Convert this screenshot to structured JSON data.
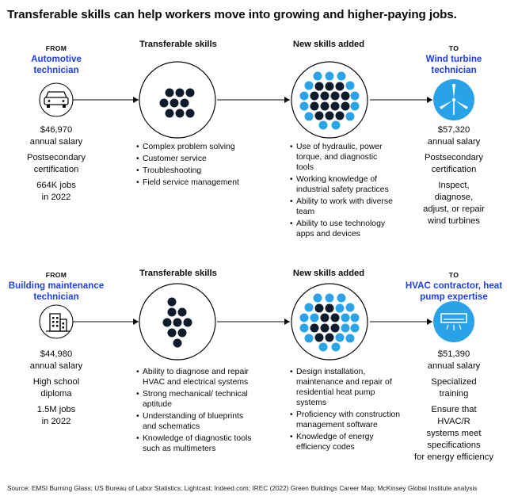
{
  "title": "Transferable skills can help workers move into growing and higher-paying jobs.",
  "colors": {
    "accent_blue": "#1f40e6",
    "light_blue": "#2aa2e8",
    "dark_dot": "#0d1b2a",
    "line": "#0a0a0a"
  },
  "rows": [
    {
      "from_label": "FROM",
      "from_role": "Automotive technician",
      "from_icon": "car-icon",
      "from_stats": [
        "$46,970",
        "annual salary",
        "Postsecondary",
        "certification",
        "664K jobs",
        "in 2022"
      ],
      "transferable_head": "Transferable skills",
      "transferable_skills": [
        "Complex problem solving",
        "Customer service",
        "Troubleshooting",
        "Field service management"
      ],
      "new_head": "New skills added",
      "new_skills": [
        "Use of hydraulic, power torque, and diagnostic tools",
        "Working knowledge of industrial safety practices",
        "Ability to work with diverse team",
        "Ability to use technology apps and devices"
      ],
      "to_label": "TO",
      "to_role": "Wind turbine technician",
      "to_icon": "wind-turbine-icon",
      "to_stats": [
        "$57,320",
        "annual salary",
        "Postsecondary",
        "certification",
        "Inspect,",
        "diagnose,",
        "adjust, or repair",
        "wind turbines"
      ]
    },
    {
      "from_label": "FROM",
      "from_role": "Building maintenance technician",
      "from_icon": "building-icon",
      "from_stats": [
        "$44,980",
        "annual salary",
        "High school",
        "diploma",
        "1.5M jobs",
        "in 2022"
      ],
      "transferable_head": "Transferable skills",
      "transferable_skills": [
        "Ability to diagnose and repair HVAC and electrical systems",
        "Strong mechanical/ technical aptitude",
        "Understanding of blueprints and schematics",
        "Knowledge of diagnostic tools such as multimeters"
      ],
      "new_head": "New skills added",
      "new_skills": [
        "Design installation, maintenance and repair of residential heat pump systems",
        "Proficiency with construction management software",
        "Knowledge of energy efficiency codes"
      ],
      "to_label": "TO",
      "to_role": "HVAC contractor, heat pump expertise",
      "to_icon": "air-conditioner-icon",
      "to_stats": [
        "$51,390",
        "annual salary",
        "Specialized",
        "training",
        "Ensure that",
        "HVAC/R",
        "systems meet",
        "specifications",
        "for energy efficiency"
      ]
    }
  ],
  "source": "Source: EMSI Burning Glass; US Bureau of Labor Statistics; Lightcast; Indeed.com; IREC (2022) Green Buildings Career Map; McKinsey Global Institute analysis"
}
